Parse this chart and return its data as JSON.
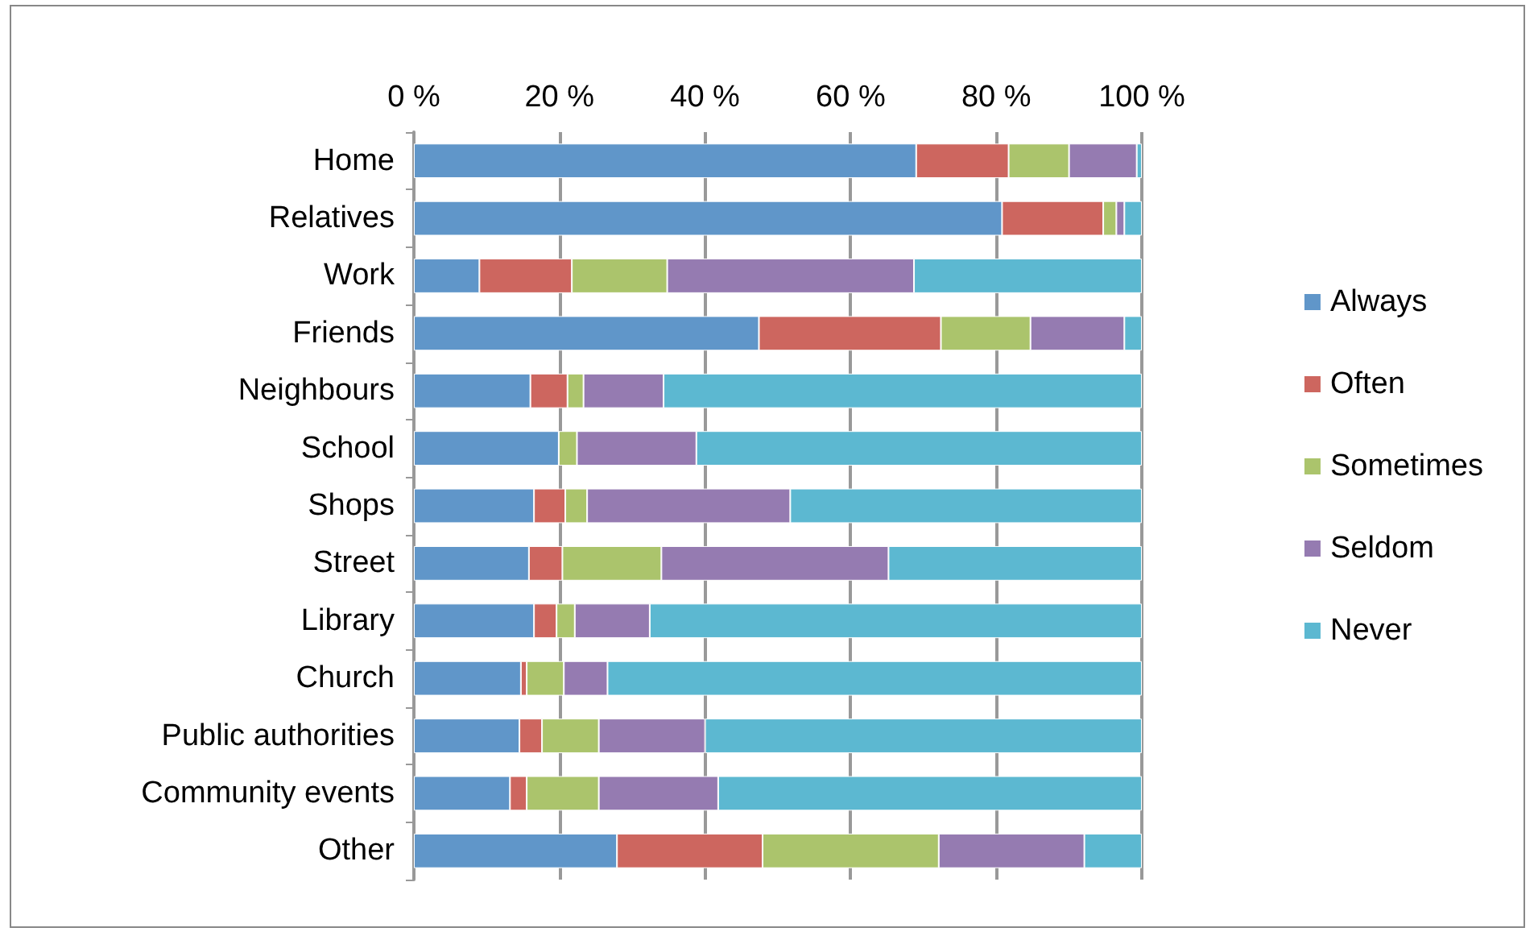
{
  "chart_data": {
    "type": "bar",
    "orientation": "horizontal",
    "stacked": true,
    "categories": [
      "Home",
      "Relatives",
      "Work",
      "Friends",
      "Neighbours",
      "School",
      "Shops",
      "Street",
      "Library",
      "Church",
      "Public authorities",
      "Community events",
      "Other"
    ],
    "series": [
      {
        "name": "Always",
        "color": "#6096c9",
        "values": [
          69.0,
          80.8,
          9.0,
          47.4,
          16.0,
          19.9,
          16.5,
          15.8,
          16.5,
          14.7,
          14.5,
          13.2,
          27.9
        ]
      },
      {
        "name": "Often",
        "color": "#cd665f",
        "values": [
          12.7,
          13.9,
          12.7,
          25.0,
          5.1,
          0,
          4.3,
          4.6,
          3.1,
          0.8,
          3.1,
          2.3,
          20.0
        ]
      },
      {
        "name": "Sometimes",
        "color": "#abc46c",
        "values": [
          8.3,
          1.8,
          13.1,
          12.3,
          2.2,
          2.5,
          3.0,
          13.6,
          2.5,
          5.1,
          7.8,
          9.9,
          24.2
        ]
      },
      {
        "name": "Seldom",
        "color": "#957bb1",
        "values": [
          9.3,
          1.1,
          33.9,
          12.9,
          11.0,
          16.4,
          27.9,
          31.2,
          10.3,
          6.0,
          14.6,
          16.4,
          20.0
        ]
      },
      {
        "name": "Never",
        "color": "#5cb8d1",
        "values": [
          0.7,
          2.4,
          31.3,
          2.4,
          65.7,
          61.2,
          48.3,
          34.8,
          67.6,
          73.4,
          60.0,
          58.2,
          7.9
        ]
      }
    ],
    "xlim": [
      0,
      100
    ],
    "xticks": [
      {
        "value": 0,
        "label": "0 %"
      },
      {
        "value": 20,
        "label": "20 %"
      },
      {
        "value": 40,
        "label": "40 %"
      },
      {
        "value": 60,
        "label": "60 %"
      },
      {
        "value": 80,
        "label": "80 %"
      },
      {
        "value": 100,
        "label": "100 %"
      }
    ],
    "grid": "x",
    "legend": "right"
  }
}
